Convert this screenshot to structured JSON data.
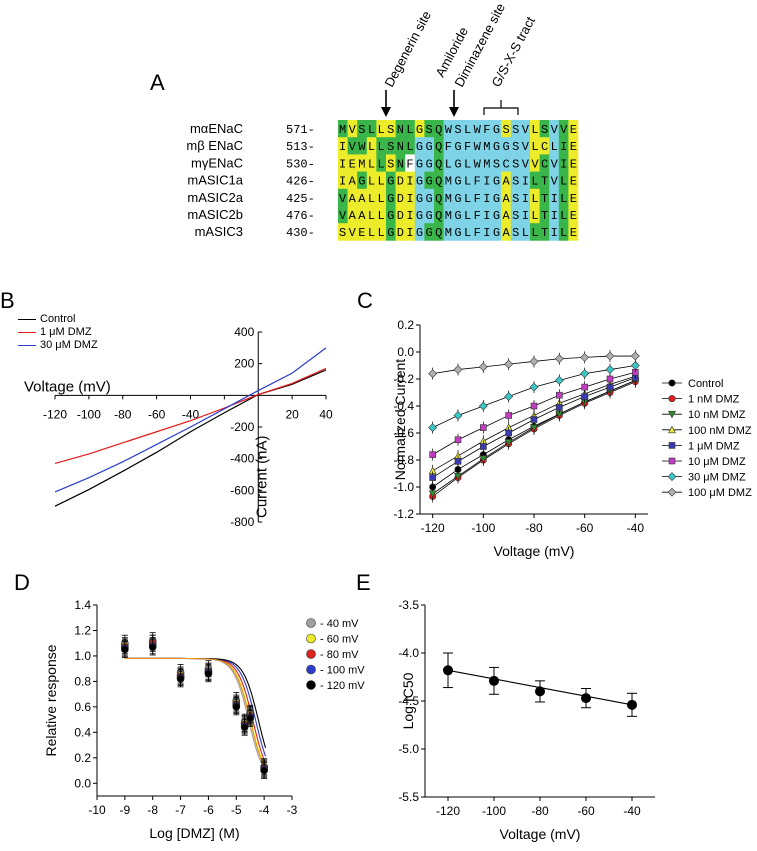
{
  "panels": {
    "A": "A",
    "B": "B",
    "C": "C",
    "D": "D",
    "E": "E"
  },
  "alignment": {
    "annotations": {
      "degenerin": "Degenerin site",
      "amiloride": "Amiloride",
      "diminazene": "Diminazene site",
      "tract": "G/S-X-S tract"
    },
    "rows": [
      {
        "name": "mαENaC",
        "start": "571-",
        "seq": "MVSLLSNLGSQWSLWFGSSVLSVVE"
      },
      {
        "name": "mβ ENaC",
        "start": "513-",
        "seq": "IVWLLSNLGGQFGFWMGGSVLCLIE"
      },
      {
        "name": "mγENaC",
        "start": "530-",
        "seq": "IEMLLSNFGGQLGLWMSCSVVCVIE"
      },
      {
        "name": "mASIC1a",
        "start": "426-",
        "seq": "IAGLLGDIGGQMGLFIGASILTVLE"
      },
      {
        "name": "mASIC2a",
        "start": "425-",
        "seq": "VAALLGDIGGQMGLFIGASILTILE"
      },
      {
        "name": "mASIC2b",
        "start": "476-",
        "seq": "VAALLGDIGGQMGLFIGASILTILE"
      },
      {
        "name": "mASIC3",
        "start": "430-",
        "seq": "SVELLGDIGGQMGLFIGASLLTILE"
      }
    ],
    "colors": {
      "green": "#39b54a",
      "yellow": "#ecec2b",
      "cyan": "#7fd3e6"
    },
    "columns": [
      [
        "g",
        "y",
        "g",
        "g",
        "y",
        "y",
        "g",
        "g",
        "y",
        "g",
        "g",
        "c",
        "c",
        "c",
        "c",
        "c",
        "c",
        "y",
        "c",
        "c",
        "y",
        "g",
        "c",
        "g",
        "y"
      ],
      [
        "y",
        "g",
        "g",
        "y",
        "g",
        "g",
        "g",
        "g",
        "c",
        "c",
        "g",
        "c",
        "c",
        "c",
        "c",
        "c",
        "c",
        "c",
        "c",
        "c",
        "y",
        "y",
        "c",
        "g",
        "y"
      ],
      [
        "y",
        "y",
        "y",
        "y",
        "g",
        "y",
        "g",
        "w",
        "c",
        "c",
        "g",
        "c",
        "c",
        "c",
        "c",
        "c",
        "c",
        "c",
        "c",
        "c",
        "y",
        "g",
        "c",
        "g",
        "y"
      ],
      [
        "y",
        "y",
        "g",
        "y",
        "y",
        "g",
        "y",
        "y",
        "c",
        "g",
        "g",
        "c",
        "c",
        "c",
        "c",
        "c",
        "c",
        "y",
        "c",
        "c",
        "g",
        "g",
        "c",
        "g",
        "y"
      ],
      [
        "g",
        "y",
        "y",
        "y",
        "y",
        "g",
        "y",
        "y",
        "c",
        "c",
        "g",
        "c",
        "c",
        "c",
        "c",
        "c",
        "c",
        "y",
        "c",
        "c",
        "y",
        "g",
        "c",
        "g",
        "y"
      ],
      [
        "g",
        "y",
        "y",
        "y",
        "y",
        "g",
        "y",
        "y",
        "c",
        "c",
        "g",
        "c",
        "c",
        "c",
        "c",
        "c",
        "c",
        "y",
        "c",
        "c",
        "y",
        "g",
        "c",
        "g",
        "y"
      ],
      [
        "y",
        "y",
        "y",
        "y",
        "y",
        "g",
        "y",
        "y",
        "c",
        "g",
        "g",
        "c",
        "c",
        "c",
        "c",
        "c",
        "c",
        "y",
        "c",
        "c",
        "g",
        "g",
        "c",
        "g",
        "y"
      ]
    ]
  },
  "chart_data": [
    {
      "panel": "B",
      "type": "line",
      "xlabel": "Voltage (mV)",
      "ylabel": "Current (nA)",
      "xlim": [
        -120,
        40
      ],
      "ylim": [
        -800,
        400
      ],
      "xticks": [
        "-120",
        "-100",
        "-80",
        "-60",
        "-40",
        "20",
        "40"
      ],
      "yticks": [
        "400",
        "200",
        "-200",
        "-400",
        "-600",
        "-800"
      ],
      "legend": "top-left",
      "series": [
        {
          "name": "Control",
          "color": "#000000",
          "x": [
            -120,
            -100,
            -80,
            -60,
            -40,
            -20,
            0,
            20,
            40
          ],
          "y": [
            -700,
            -595,
            -480,
            -360,
            -230,
            -110,
            5,
            70,
            160
          ]
        },
        {
          "name": "1 μM DMZ",
          "color": "#e41a1c",
          "x": [
            -120,
            -100,
            -80,
            -60,
            -40,
            -20,
            0,
            20,
            40
          ],
          "y": [
            -430,
            -370,
            -300,
            -230,
            -160,
            -80,
            5,
            75,
            170
          ]
        },
        {
          "name": "30 μM DMZ",
          "color": "#2b3dcc",
          "x": [
            -120,
            -100,
            -80,
            -60,
            -40,
            -20,
            0,
            20,
            40
          ],
          "y": [
            -610,
            -520,
            -420,
            -310,
            -200,
            -85,
            30,
            140,
            300
          ]
        }
      ]
    },
    {
      "panel": "C",
      "type": "line",
      "xlabel": "Voltage (mV)",
      "ylabel": "Normalized Current",
      "xlim": [
        -125,
        -35
      ],
      "ylim": [
        -1.2,
        0.2
      ],
      "xticks": [
        -120,
        -100,
        -80,
        -60,
        -40
      ],
      "yticks": [
        0.2,
        0.0,
        -0.2,
        -0.4,
        -0.6,
        -0.8,
        -1.0,
        -1.2
      ],
      "legend": "right",
      "x": [
        -120,
        -110,
        -100,
        -90,
        -80,
        -70,
        -60,
        -50,
        -40
      ],
      "series": [
        {
          "name": "Control",
          "color": "#000000",
          "marker": "circle",
          "values": [
            -1.0,
            -0.87,
            -0.76,
            -0.65,
            -0.55,
            -0.46,
            -0.37,
            -0.29,
            -0.21
          ]
        },
        {
          "name": "1 nM DMZ",
          "color": "#e41a1c",
          "marker": "circle",
          "values": [
            -1.07,
            -0.93,
            -0.8,
            -0.68,
            -0.57,
            -0.47,
            -0.38,
            -0.3,
            -0.22
          ]
        },
        {
          "name": "10 nM DMZ",
          "color": "#2e8b2e",
          "marker": "triangle-down",
          "values": [
            -1.05,
            -0.92,
            -0.79,
            -0.67,
            -0.56,
            -0.46,
            -0.37,
            -0.29,
            -0.21
          ]
        },
        {
          "name": "100 nM DMZ",
          "color": "#e8e83a",
          "marker": "triangle-up",
          "values": [
            -0.88,
            -0.77,
            -0.66,
            -0.56,
            -0.47,
            -0.38,
            -0.31,
            -0.24,
            -0.18
          ]
        },
        {
          "name": "1 μM DMZ",
          "color": "#3b3bb0",
          "marker": "square",
          "values": [
            -0.93,
            -0.81,
            -0.7,
            -0.6,
            -0.5,
            -0.41,
            -0.33,
            -0.26,
            -0.19
          ]
        },
        {
          "name": "10 μM DMZ",
          "color": "#c03cc0",
          "marker": "square",
          "values": [
            -0.76,
            -0.65,
            -0.56,
            -0.47,
            -0.4,
            -0.32,
            -0.26,
            -0.2,
            -0.15
          ]
        },
        {
          "name": "30 μM DMZ",
          "color": "#3cc7c7",
          "marker": "diamond",
          "values": [
            -0.56,
            -0.47,
            -0.4,
            -0.33,
            -0.26,
            -0.21,
            -0.16,
            -0.13,
            -0.1
          ]
        },
        {
          "name": "100 μM DMZ",
          "color": "#b0b0b0",
          "marker": "diamond",
          "values": [
            -0.16,
            -0.13,
            -0.11,
            -0.09,
            -0.07,
            -0.05,
            -0.04,
            -0.03,
            -0.03
          ]
        }
      ]
    },
    {
      "panel": "D",
      "type": "scatter",
      "xlabel": "Log [DMZ] (M)",
      "ylabel": "Relative response",
      "xlim": [
        -10,
        -3
      ],
      "ylim": [
        -0.1,
        1.4
      ],
      "xticks": [
        -10,
        -9,
        -8,
        -7,
        -6,
        -5,
        -4,
        -3
      ],
      "yticks": [
        0.0,
        0.2,
        0.4,
        0.6,
        0.8,
        1.0,
        1.2,
        1.4
      ],
      "legend": "right",
      "x": [
        -9,
        -8,
        -7,
        -6,
        -5,
        -4.7,
        -4.5,
        -4
      ],
      "series": [
        {
          "name": "- 40 mV",
          "color": "#a0a0a0",
          "values": [
            1.1,
            1.12,
            0.87,
            0.9,
            0.65,
            0.48,
            0.55,
            0.13
          ]
        },
        {
          "name": "- 60 mV",
          "color": "#ecec2b",
          "values": [
            1.08,
            1.1,
            0.85,
            0.88,
            0.63,
            0.47,
            0.54,
            0.12
          ]
        },
        {
          "name": "- 80 mV",
          "color": "#d9241c",
          "values": [
            1.07,
            1.1,
            0.84,
            0.88,
            0.62,
            0.46,
            0.53,
            0.12
          ]
        },
        {
          "name": "- 100 mV",
          "color": "#2b3dcc",
          "values": [
            1.06,
            1.08,
            0.83,
            0.87,
            0.61,
            0.45,
            0.52,
            0.11
          ]
        },
        {
          "name": "- 120 mV",
          "color": "#000000",
          "values": [
            1.05,
            1.07,
            0.82,
            0.86,
            0.6,
            0.44,
            0.51,
            0.1
          ]
        }
      ],
      "fit_colors": [
        "#a0a0a0",
        "#ecec2b",
        "#d9241c",
        "#2b3dcc",
        "#000000",
        "#e8901c"
      ],
      "fit_log_ic50": [
        -4.55,
        -4.47,
        -4.4,
        -4.3,
        -4.2,
        -4.5
      ],
      "fit_top": 0.98
    },
    {
      "panel": "E",
      "type": "line",
      "xlabel": "Voltage (mV)",
      "ylabel": "Log IC50",
      "xlim": [
        -130,
        -30
      ],
      "ylim": [
        -5.5,
        -3.5
      ],
      "xticks": [
        -120,
        -100,
        -80,
        -60,
        -40
      ],
      "yticks": [
        -3.5,
        -4.0,
        -4.5,
        -5.0,
        -5.5
      ],
      "x": [
        -120,
        -100,
        -80,
        -60,
        -40
      ],
      "values": [
        -4.18,
        -4.29,
        -4.4,
        -4.47,
        -4.54
      ],
      "errors": [
        0.18,
        0.14,
        0.11,
        0.1,
        0.12
      ]
    }
  ]
}
